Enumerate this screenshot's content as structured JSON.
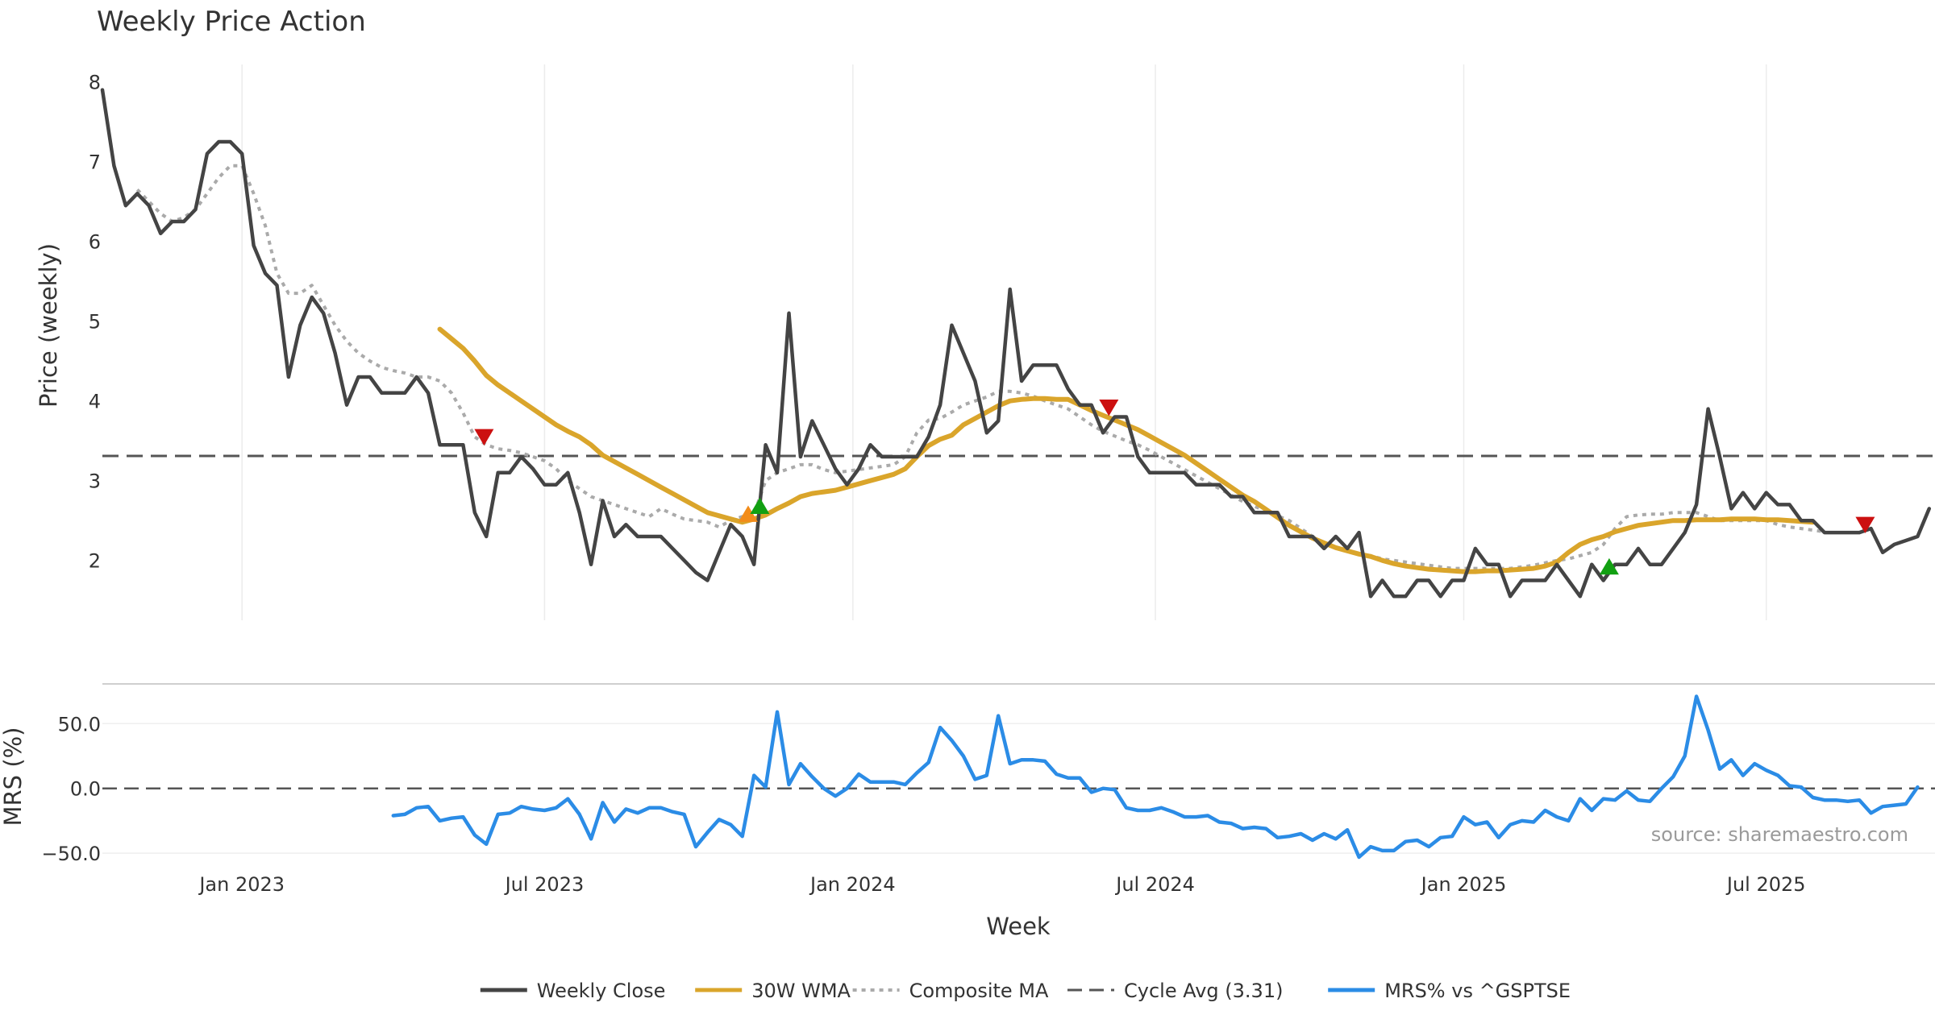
{
  "chart_data": {
    "type": "line",
    "title": "Weekly Price Action",
    "xlabel": "Week",
    "source_note": "source: sharemaestro.com",
    "x_ticks": [
      {
        "label": "Jan 2023",
        "week": 12
      },
      {
        "label": "Jul 2023",
        "week": 38
      },
      {
        "label": "Jan 2024",
        "week": 64.5
      },
      {
        "label": "Jul 2024",
        "week": 90.5
      },
      {
        "label": "Jan 2025",
        "week": 117
      },
      {
        "label": "Jul 2025",
        "week": 143
      }
    ],
    "x_range": [
      0,
      157.5
    ],
    "price_panel": {
      "ylabel": "Price (weekly)",
      "ylim": [
        1.25,
        8.3
      ],
      "y_ticks": [
        2,
        3,
        4,
        5,
        6,
        7,
        8
      ],
      "cycle_avg": 3.31,
      "series": [
        {
          "name": "Weekly Close",
          "color": "#444444",
          "start_week": 0,
          "values": [
            7.9,
            6.95,
            6.45,
            6.6,
            6.45,
            6.1,
            6.25,
            6.25,
            6.4,
            7.1,
            7.25,
            7.25,
            7.1,
            5.95,
            5.6,
            5.45,
            4.3,
            4.95,
            5.3,
            5.1,
            4.6,
            3.95,
            4.3,
            4.3,
            4.1,
            4.1,
            4.1,
            4.3,
            4.1,
            3.45,
            3.45,
            3.45,
            2.6,
            2.3,
            3.1,
            3.1,
            3.3,
            3.15,
            2.95,
            2.95,
            3.1,
            2.6,
            1.95,
            2.75,
            2.3,
            2.45,
            2.3,
            2.3,
            2.3,
            2.15,
            2.0,
            1.85,
            1.75,
            2.1,
            2.45,
            2.3,
            1.95,
            3.45,
            3.1,
            5.1,
            3.3,
            3.75,
            3.45,
            3.15,
            2.95,
            3.15,
            3.45,
            3.3,
            3.3,
            3.3,
            3.3,
            3.55,
            3.95,
            4.95,
            4.6,
            4.25,
            3.6,
            3.75,
            5.4,
            4.25,
            4.45,
            4.45,
            4.45,
            4.15,
            3.95,
            3.95,
            3.6,
            3.8,
            3.8,
            3.3,
            3.1,
            3.1,
            3.1,
            3.1,
            2.95,
            2.95,
            2.95,
            2.8,
            2.8,
            2.6,
            2.6,
            2.6,
            2.3,
            2.3,
            2.3,
            2.15,
            2.3,
            2.15,
            2.35,
            1.55,
            1.75,
            1.55,
            1.55,
            1.75,
            1.75,
            1.55,
            1.75,
            1.75,
            2.15,
            1.95,
            1.95,
            1.55,
            1.75,
            1.75,
            1.75,
            1.95,
            1.75,
            1.55,
            1.95,
            1.75,
            1.95,
            1.95,
            2.15,
            1.95,
            1.95,
            2.15,
            2.35,
            2.7,
            3.9,
            3.3,
            2.65,
            2.85,
            2.65,
            2.85,
            2.7,
            2.7,
            2.5,
            2.5,
            2.35,
            2.35,
            2.35,
            2.35,
            2.4,
            2.1,
            2.2,
            2.25,
            2.3,
            2.65
          ]
        },
        {
          "name": "30W WMA",
          "color": "#DAA52B",
          "start_week": 29,
          "values": [
            4.9,
            4.78,
            4.66,
            4.5,
            4.32,
            4.2,
            4.1,
            4.0,
            3.9,
            3.8,
            3.7,
            3.62,
            3.55,
            3.45,
            3.32,
            3.24,
            3.16,
            3.08,
            3.0,
            2.92,
            2.84,
            2.76,
            2.68,
            2.6,
            2.56,
            2.52,
            2.48,
            2.52,
            2.57,
            2.65,
            2.72,
            2.8,
            2.84,
            2.86,
            2.88,
            2.92,
            2.96,
            3.0,
            3.04,
            3.08,
            3.15,
            3.3,
            3.44,
            3.52,
            3.57,
            3.7,
            3.78,
            3.86,
            3.94,
            4.0,
            4.02,
            4.03,
            4.03,
            4.02,
            4.02,
            3.95,
            3.88,
            3.82,
            3.76,
            3.7,
            3.64,
            3.56,
            3.48,
            3.4,
            3.32,
            3.22,
            3.12,
            3.02,
            2.92,
            2.82,
            2.74,
            2.64,
            2.54,
            2.44,
            2.36,
            2.28,
            2.22,
            2.16,
            2.12,
            2.08,
            2.05,
            2.0,
            1.96,
            1.93,
            1.91,
            1.89,
            1.88,
            1.87,
            1.86,
            1.86,
            1.87,
            1.87,
            1.88,
            1.89,
            1.9,
            1.93,
            1.98,
            2.1,
            2.2,
            2.26,
            2.3,
            2.36,
            2.4,
            2.44,
            2.46,
            2.48,
            2.5,
            2.5,
            2.51,
            2.51,
            2.51,
            2.52,
            2.52,
            2.52,
            2.51,
            2.51,
            2.5,
            2.49,
            2.48
          ]
        },
        {
          "name": "Composite MA",
          "color": "#AAAAAA",
          "start_week": 3,
          "values": [
            6.65,
            6.5,
            6.35,
            6.25,
            6.3,
            6.4,
            6.6,
            6.8,
            6.95,
            6.95,
            6.6,
            6.2,
            5.6,
            5.35,
            5.35,
            5.45,
            5.2,
            4.95,
            4.75,
            4.6,
            4.5,
            4.42,
            4.38,
            4.35,
            4.3,
            4.3,
            4.25,
            4.1,
            3.85,
            3.55,
            3.45,
            3.4,
            3.38,
            3.35,
            3.3,
            3.25,
            3.15,
            3.0,
            2.9,
            2.8,
            2.75,
            2.7,
            2.65,
            2.6,
            2.55,
            2.65,
            2.58,
            2.52,
            2.5,
            2.48,
            2.42,
            2.5,
            2.55,
            2.58,
            3.0,
            3.1,
            3.15,
            3.2,
            3.2,
            3.14,
            3.1,
            3.12,
            3.14,
            3.16,
            3.18,
            3.2,
            3.3,
            3.6,
            3.76,
            3.78,
            3.86,
            3.95,
            4.0,
            4.05,
            4.12,
            4.12,
            4.1,
            4.06,
            4.0,
            3.95,
            3.9,
            3.8,
            3.7,
            3.62,
            3.56,
            3.5,
            3.45,
            3.38,
            3.3,
            3.22,
            3.14,
            3.06,
            2.98,
            2.9,
            2.82,
            2.74,
            2.68,
            2.62,
            2.56,
            2.5,
            2.4,
            2.3,
            2.22,
            2.16,
            2.12,
            2.08,
            2.06,
            2.02,
            2.0,
            1.98,
            1.96,
            1.94,
            1.92,
            1.9,
            1.9,
            1.9,
            1.9,
            1.9,
            1.9,
            1.92,
            1.94,
            1.97,
            2.0,
            2.02,
            2.06,
            2.1,
            2.2,
            2.4,
            2.55,
            2.57,
            2.58,
            2.58,
            2.6,
            2.6,
            2.6,
            2.55,
            2.5,
            2.5,
            2.5,
            2.5,
            2.5,
            2.45,
            2.42,
            2.4,
            2.38,
            2.36
          ]
        }
      ],
      "markers": [
        {
          "type": "sell",
          "week": 32.8,
          "value": 3.55,
          "color": "#CC1010"
        },
        {
          "type": "buy",
          "week": 55.5,
          "value": 2.58,
          "color": "#F28C1A"
        },
        {
          "type": "buy",
          "week": 56.5,
          "value": 2.68,
          "color": "#12A012"
        },
        {
          "type": "sell",
          "week": 86.5,
          "value": 3.92,
          "color": "#CC1010"
        },
        {
          "type": "buy",
          "week": 129.5,
          "value": 1.92,
          "color": "#12A012"
        },
        {
          "type": "sell",
          "week": 151.5,
          "value": 2.45,
          "color": "#CC1010"
        }
      ]
    },
    "mrs_panel": {
      "ylabel": "MRS (%)",
      "ylim": [
        -58,
        80
      ],
      "y_ticks": [
        {
          "value": 50,
          "label": "50.0"
        },
        {
          "value": 0,
          "label": "0.0"
        },
        {
          "value": -50,
          "label": "−50.0"
        }
      ],
      "series": [
        {
          "name": "MRS% vs ^GSPTSE",
          "color": "#2B8CE6",
          "start_week": 25,
          "values": [
            -21,
            -20,
            -15,
            -14,
            -25,
            -23,
            -22,
            -36,
            -43,
            -20,
            -19,
            -14,
            -16,
            -17,
            -15,
            -8,
            -20,
            -39,
            -11,
            -26,
            -16,
            -19,
            -15,
            -15,
            -18,
            -20,
            -45,
            -34,
            -24,
            -28,
            -37,
            10,
            1,
            59,
            3,
            19,
            9,
            0,
            -6,
            0,
            11,
            5,
            5,
            5,
            3,
            12,
            20,
            47,
            37,
            25,
            7,
            10,
            56,
            19,
            22,
            22,
            21,
            11,
            8,
            8,
            -3,
            0,
            -1,
            -15,
            -17,
            -17,
            -15,
            -18,
            -22,
            -22,
            -21,
            -26,
            -27,
            -31,
            -30,
            -31,
            -38,
            -37,
            -35,
            -40,
            -35,
            -39,
            -32,
            -53,
            -45,
            -48,
            -48,
            -41,
            -40,
            -45,
            -38,
            -37,
            -22,
            -28,
            -26,
            -38,
            -28,
            -25,
            -26,
            -17,
            -22,
            -25,
            -8,
            -17,
            -8,
            -9,
            -2,
            -9,
            -10,
            0,
            9,
            25,
            71,
            45,
            15,
            22,
            10,
            19,
            14,
            10,
            2,
            1,
            -7,
            -9,
            -9,
            -10,
            -9,
            -19,
            -14,
            -13,
            -12,
            1
          ]
        }
      ]
    },
    "legend": {
      "placement": "bottom-center",
      "entries": [
        {
          "label": "Weekly Close",
          "style": "solid",
          "color": "#444444"
        },
        {
          "label": "30W WMA",
          "style": "solid",
          "color": "#DAA52B"
        },
        {
          "label": "Composite MA",
          "style": "dotted",
          "color": "#AAAAAA"
        },
        {
          "label": "Cycle Avg (3.31)",
          "style": "dashed",
          "color": "#555555"
        },
        {
          "label": "MRS% vs ^GSPTSE",
          "style": "solid",
          "color": "#2B8CE6"
        }
      ]
    }
  }
}
